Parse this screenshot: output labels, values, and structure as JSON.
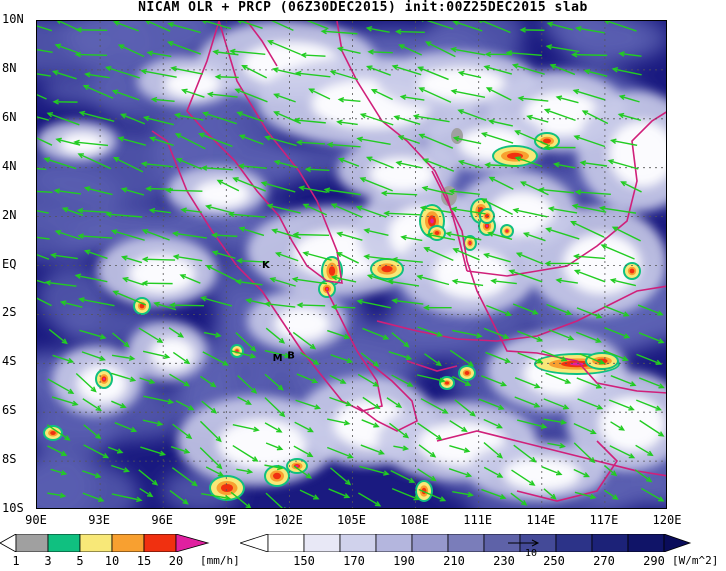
{
  "title": "NICAM OLR + PRCP (06Z30DEC2015) init:00Z25DEC2015 slab",
  "map": {
    "lat_labels": [
      "10N",
      "8N",
      "6N",
      "4N",
      "2N",
      "EQ",
      "2S",
      "4S",
      "6S",
      "8S",
      "10S"
    ],
    "lon_labels": [
      "90E",
      "93E",
      "96E",
      "99E",
      "102E",
      "105E",
      "108E",
      "111E",
      "114E",
      "117E",
      "120E"
    ],
    "lat_range": [
      -10,
      10
    ],
    "lon_range": [
      90,
      120
    ],
    "station_markers": [
      {
        "label": "K",
        "lon": 100.7,
        "lat": -0.1
      },
      {
        "label": "M",
        "lon": 101.2,
        "lat": -3.9
      },
      {
        "label": "B",
        "lon": 101.9,
        "lat": -3.8
      }
    ],
    "colors": {
      "olr_dark": "#1a1a80",
      "olr_mid": "#5e63b3",
      "olr_light": "#c8cae8",
      "cloud": "#ffffff",
      "coast": "#d0207a",
      "wind": "#22cc22",
      "grid": "#555555"
    }
  },
  "precip_colorbar": {
    "labels": [
      "1",
      "3",
      "5",
      "10",
      "15",
      "20"
    ],
    "unit": "[mm/h]",
    "colors": [
      "#a0a0a0",
      "#10c080",
      "#f8e878",
      "#f8a030",
      "#f03010",
      "#e020a0"
    ]
  },
  "olr_colorbar": {
    "labels": [
      "150",
      "170",
      "190",
      "210",
      "230",
      "250",
      "270",
      "290"
    ],
    "unit": "[W/m^2]",
    "overlay_label": "10",
    "colors": [
      "#ffffff",
      "#e8e8f6",
      "#d0d2ec",
      "#b4b6de",
      "#9698cc",
      "#7a7dba",
      "#5e62a8",
      "#444a98",
      "#2c3388",
      "#1c2278",
      "#101468"
    ]
  }
}
